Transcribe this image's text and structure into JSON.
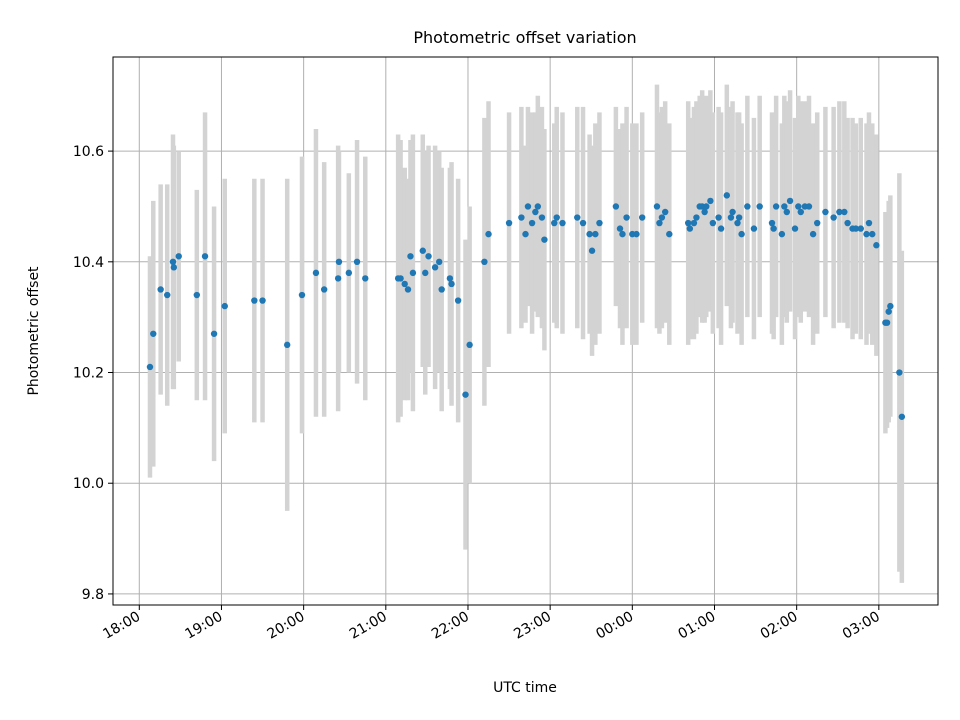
{
  "chart_data": {
    "type": "scatter",
    "title": "Photometric offset variation",
    "xlabel": "UTC time",
    "ylabel": "Photometric offset",
    "x_units": "hours since 18:00 UTC",
    "xlim": [
      -0.32,
      9.72
    ],
    "ylim": [
      9.78,
      10.77
    ],
    "x_ticks": [
      0,
      1,
      2,
      3,
      4,
      5,
      6,
      7,
      8,
      9
    ],
    "x_tick_labels": [
      "18:00",
      "19:00",
      "20:00",
      "21:00",
      "22:00",
      "23:00",
      "00:00",
      "01:00",
      "02:00",
      "03:00"
    ],
    "y_ticks": [
      9.8,
      10.0,
      10.2,
      10.4,
      10.6
    ],
    "y_tick_labels": [
      "9.8",
      "10.0",
      "10.2",
      "10.4",
      "10.6"
    ],
    "grid": true,
    "colors": {
      "point": "#1f77b4",
      "errorbar": "#d3d3d3",
      "grid": "#b0b0b0",
      "axis": "#000000"
    },
    "series": [
      {
        "name": "photometric offset",
        "points": [
          [
            0.13,
            10.21,
            0.2
          ],
          [
            0.17,
            10.27,
            0.24
          ],
          [
            0.26,
            10.35,
            0.19
          ],
          [
            0.34,
            10.34,
            0.2
          ],
          [
            0.41,
            10.4,
            0.23
          ],
          [
            0.42,
            10.39,
            0.22
          ],
          [
            0.48,
            10.41,
            0.19
          ],
          [
            0.7,
            10.34,
            0.19
          ],
          [
            0.8,
            10.41,
            0.26
          ],
          [
            0.91,
            10.27,
            0.23
          ],
          [
            1.04,
            10.32,
            0.23
          ],
          [
            1.4,
            10.33,
            0.22
          ],
          [
            1.5,
            10.33,
            0.22
          ],
          [
            1.8,
            10.25,
            0.3
          ],
          [
            1.98,
            10.34,
            0.25
          ],
          [
            2.15,
            10.38,
            0.26
          ],
          [
            2.25,
            10.35,
            0.23
          ],
          [
            2.42,
            10.37,
            0.24
          ],
          [
            2.43,
            10.4,
            0.2
          ],
          [
            2.55,
            10.38,
            0.18
          ],
          [
            2.65,
            10.4,
            0.22
          ],
          [
            2.75,
            10.37,
            0.22
          ],
          [
            3.15,
            10.37,
            0.26
          ],
          [
            3.18,
            10.37,
            0.25
          ],
          [
            3.23,
            10.36,
            0.21
          ],
          [
            3.27,
            10.35,
            0.2
          ],
          [
            3.3,
            10.41,
            0.21
          ],
          [
            3.33,
            10.38,
            0.25
          ],
          [
            3.45,
            10.42,
            0.21
          ],
          [
            3.48,
            10.38,
            0.22
          ],
          [
            3.52,
            10.41,
            0.2
          ],
          [
            3.6,
            10.39,
            0.22
          ],
          [
            3.65,
            10.4,
            0.2
          ],
          [
            3.68,
            10.35,
            0.22
          ],
          [
            3.78,
            10.37,
            0.2
          ],
          [
            3.8,
            10.36,
            0.22
          ],
          [
            3.88,
            10.33,
            0.22
          ],
          [
            3.97,
            10.16,
            0.28
          ],
          [
            4.02,
            10.25,
            0.25
          ],
          [
            4.2,
            10.4,
            0.26
          ],
          [
            4.25,
            10.45,
            0.24
          ],
          [
            4.5,
            10.47,
            0.2
          ],
          [
            4.65,
            10.48,
            0.2
          ],
          [
            4.7,
            10.45,
            0.16
          ],
          [
            4.73,
            10.5,
            0.18
          ],
          [
            4.78,
            10.47,
            0.2
          ],
          [
            4.82,
            10.49,
            0.18
          ],
          [
            4.85,
            10.5,
            0.2
          ],
          [
            4.9,
            10.48,
            0.2
          ],
          [
            4.93,
            10.44,
            0.2
          ],
          [
            5.05,
            10.47,
            0.18
          ],
          [
            5.08,
            10.48,
            0.2
          ],
          [
            5.15,
            10.47,
            0.2
          ],
          [
            5.33,
            10.48,
            0.2
          ],
          [
            5.4,
            10.47,
            0.21
          ],
          [
            5.48,
            10.45,
            0.18
          ],
          [
            5.51,
            10.42,
            0.19
          ],
          [
            5.55,
            10.45,
            0.2
          ],
          [
            5.6,
            10.47,
            0.2
          ],
          [
            5.8,
            10.5,
            0.18
          ],
          [
            5.85,
            10.46,
            0.18
          ],
          [
            5.88,
            10.45,
            0.2
          ],
          [
            5.93,
            10.48,
            0.2
          ],
          [
            6.0,
            10.45,
            0.2
          ],
          [
            6.05,
            10.45,
            0.2
          ],
          [
            6.12,
            10.48,
            0.19
          ],
          [
            6.3,
            10.5,
            0.22
          ],
          [
            6.33,
            10.47,
            0.2
          ],
          [
            6.36,
            10.48,
            0.2
          ],
          [
            6.4,
            10.49,
            0.2
          ],
          [
            6.45,
            10.45,
            0.2
          ],
          [
            6.68,
            10.47,
            0.22
          ],
          [
            6.7,
            10.46,
            0.2
          ],
          [
            6.75,
            10.47,
            0.21
          ],
          [
            6.78,
            10.48,
            0.21
          ],
          [
            6.82,
            10.5,
            0.2
          ],
          [
            6.85,
            10.5,
            0.21
          ],
          [
            6.88,
            10.49,
            0.2
          ],
          [
            6.9,
            10.5,
            0.2
          ],
          [
            6.95,
            10.51,
            0.2
          ],
          [
            6.98,
            10.47,
            0.2
          ],
          [
            7.05,
            10.48,
            0.2
          ],
          [
            7.08,
            10.46,
            0.21
          ],
          [
            7.15,
            10.52,
            0.2
          ],
          [
            7.2,
            10.48,
            0.2
          ],
          [
            7.22,
            10.49,
            0.2
          ],
          [
            7.28,
            10.47,
            0.2
          ],
          [
            7.3,
            10.48,
            0.19
          ],
          [
            7.33,
            10.45,
            0.2
          ],
          [
            7.4,
            10.5,
            0.2
          ],
          [
            7.48,
            10.46,
            0.2
          ],
          [
            7.55,
            10.5,
            0.2
          ],
          [
            7.7,
            10.47,
            0.2
          ],
          [
            7.72,
            10.46,
            0.2
          ],
          [
            7.75,
            10.5,
            0.2
          ],
          [
            7.82,
            10.45,
            0.2
          ],
          [
            7.85,
            10.5,
            0.2
          ],
          [
            7.88,
            10.49,
            0.2
          ],
          [
            7.92,
            10.51,
            0.2
          ],
          [
            7.98,
            10.46,
            0.2
          ],
          [
            8.02,
            10.5,
            0.2
          ],
          [
            8.05,
            10.49,
            0.2
          ],
          [
            8.1,
            10.5,
            0.19
          ],
          [
            8.15,
            10.5,
            0.2
          ],
          [
            8.2,
            10.45,
            0.2
          ],
          [
            8.25,
            10.47,
            0.2
          ],
          [
            8.35,
            10.49,
            0.19
          ],
          [
            8.45,
            10.48,
            0.2
          ],
          [
            8.52,
            10.49,
            0.2
          ],
          [
            8.58,
            10.49,
            0.2
          ],
          [
            8.62,
            10.47,
            0.19
          ],
          [
            8.68,
            10.46,
            0.2
          ],
          [
            8.72,
            10.46,
            0.19
          ],
          [
            8.78,
            10.46,
            0.2
          ],
          [
            8.85,
            10.45,
            0.2
          ],
          [
            8.88,
            10.47,
            0.2
          ],
          [
            8.92,
            10.45,
            0.2
          ],
          [
            8.97,
            10.43,
            0.2
          ],
          [
            9.08,
            10.29,
            0.2
          ],
          [
            9.1,
            10.29,
            0.19
          ],
          [
            9.12,
            10.31,
            0.2
          ],
          [
            9.14,
            10.32,
            0.2
          ],
          [
            9.25,
            10.2,
            0.36
          ],
          [
            9.28,
            10.12,
            0.3
          ]
        ]
      }
    ]
  }
}
